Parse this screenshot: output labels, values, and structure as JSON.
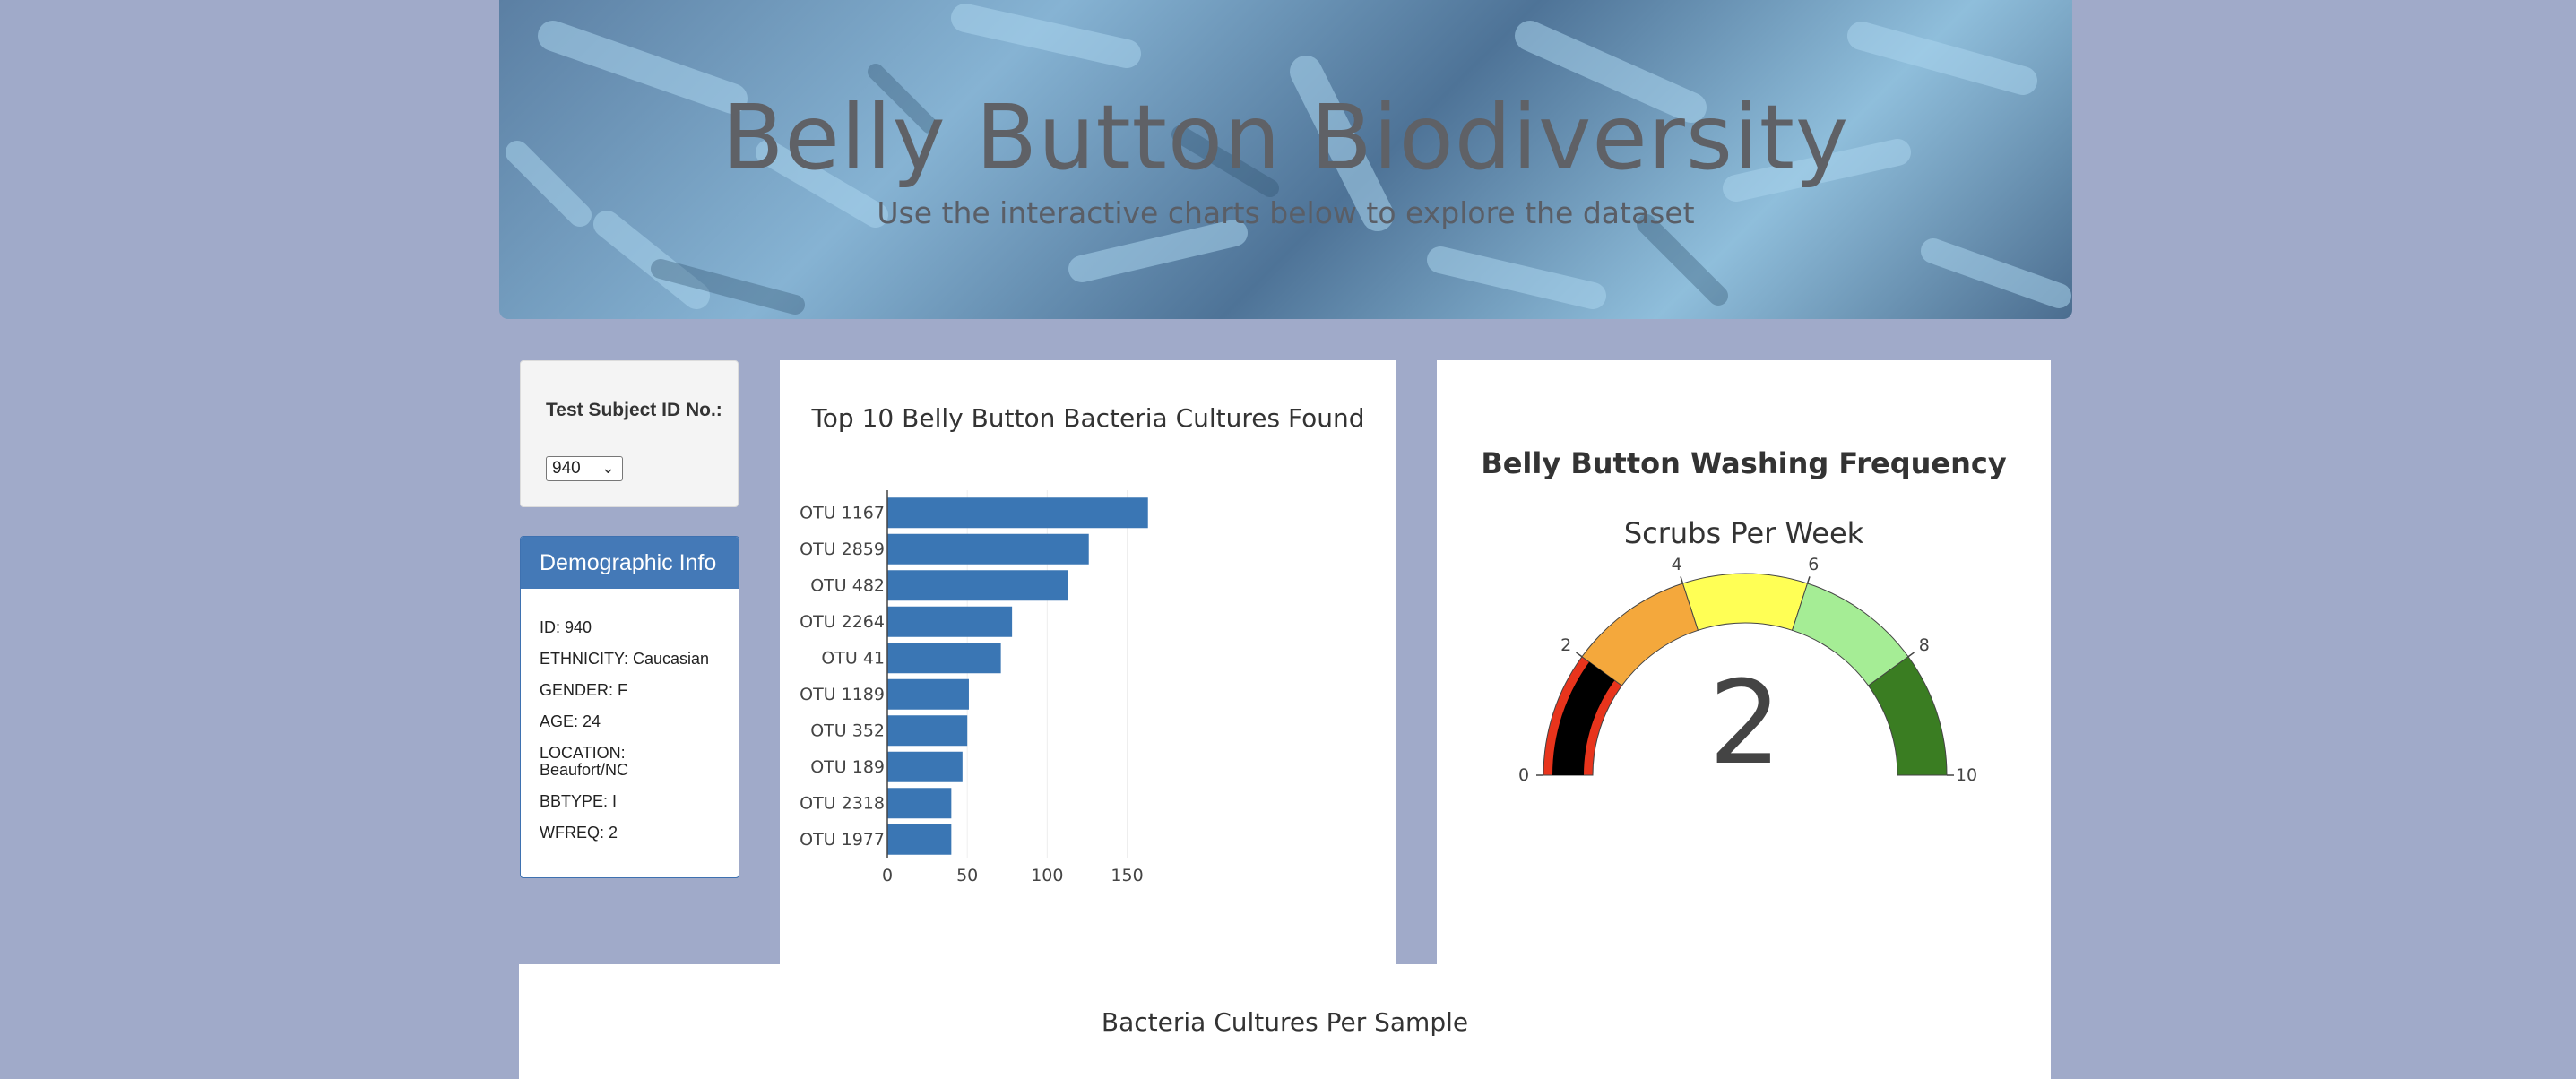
{
  "header": {
    "title": "Belly Button Biodiversity",
    "subtitle": "Use the interactive charts below to explore the dataset"
  },
  "selector": {
    "label": "Test Subject ID No.:",
    "selected": "940"
  },
  "demographics": {
    "title": "Demographic Info",
    "rows": [
      "ID: 940",
      "ETHNICITY: Caucasian",
      "GENDER: F",
      "AGE: 24",
      "LOCATION: Beaufort/NC",
      "BBTYPE: I",
      "WFREQ: 2"
    ]
  },
  "bubble": {
    "title": "Bacteria Cultures Per Sample"
  },
  "colors": {
    "bar": "#3a76b4",
    "page_bg": "#a0aac9",
    "panel_header": "#4479b7"
  },
  "chart_data": [
    {
      "type": "bar",
      "orientation": "horizontal",
      "title": "Top 10 Belly Button Bacteria Cultures Found",
      "categories": [
        "OTU 1167",
        "OTU 2859",
        "OTU 482",
        "OTU 2264",
        "OTU 41",
        "OTU 1189",
        "OTU 352",
        "OTU 189",
        "OTU 2318",
        "OTU 1977"
      ],
      "values": [
        163,
        126,
        113,
        78,
        71,
        51,
        50,
        47,
        40,
        40
      ],
      "xticks": [
        0,
        50,
        100,
        150
      ],
      "xlim": [
        0,
        171
      ],
      "grid": true
    },
    {
      "type": "gauge",
      "title": "Belly Button Washing Frequency",
      "subtitle": "Scrubs Per Week",
      "value": 2,
      "range": [
        0,
        10
      ],
      "ticks": [
        "0",
        "2",
        "4",
        "6",
        "8",
        "10"
      ],
      "steps": [
        {
          "range": [
            0,
            2
          ],
          "color": "#e8341c"
        },
        {
          "range": [
            2,
            4
          ],
          "color": "#f4a83c"
        },
        {
          "range": [
            4,
            6
          ],
          "color": "#ffff55"
        },
        {
          "range": [
            6,
            8
          ],
          "color": "#a5ed95"
        },
        {
          "range": [
            8,
            10
          ],
          "color": "#3a7d22"
        }
      ],
      "bar_color": "#000000"
    }
  ]
}
